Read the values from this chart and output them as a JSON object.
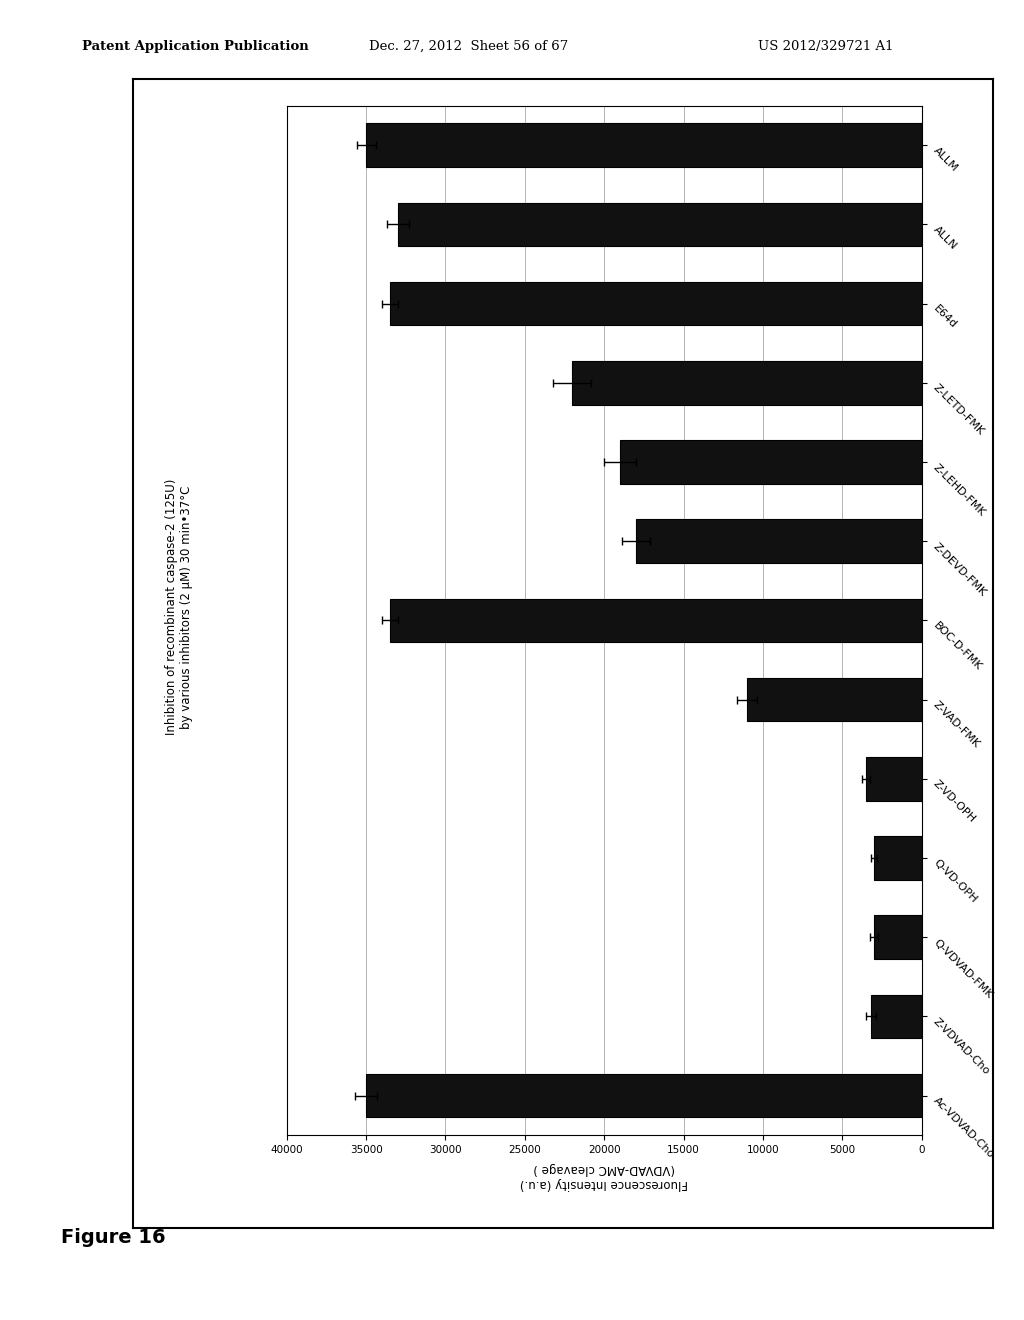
{
  "categories": [
    "ALLM",
    "ALLN",
    "E64d",
    "Z-LETD-FMK",
    "Z-LEHD-FMK",
    "Z-DEVD-FMK",
    "BOC-D-FMK",
    "Z-VAD-FMK",
    "Z-VD-OPH",
    "Q-VD-OPH",
    "Q-VDVAD-FMK",
    "Z-VDVAD-Cho",
    "Ac-VDVAD-Cho"
  ],
  "values": [
    35000,
    33000,
    33500,
    22000,
    19000,
    18000,
    33500,
    11000,
    3500,
    3000,
    3000,
    3200,
    35000
  ],
  "errors": [
    600,
    700,
    500,
    1200,
    1000,
    900,
    500,
    600,
    250,
    200,
    250,
    300,
    700
  ],
  "bar_color": "#111111",
  "bar_edge_color": "#000000",
  "background_color": "#ffffff",
  "plot_bg_color": "#ffffff",
  "title_line1": "Inhibition of recombinant caspase-2 (125U)",
  "title_line2": "by various inhibitors (2 μM) 30 min•37°C",
  "ylabel_line1": "Fluorescence Intensity (a.u.)",
  "ylabel_line2": "(VDVAD-AMC cleavage )",
  "ylim_max": 40000,
  "yticks": [
    0,
    5000,
    10000,
    15000,
    20000,
    25000,
    30000,
    35000,
    40000
  ],
  "figure_label": "Figure 16",
  "header_left": "Patent Application Publication",
  "header_center": "Dec. 27, 2012  Sheet 56 of 67",
  "header_right": "US 2012/329721 A1"
}
